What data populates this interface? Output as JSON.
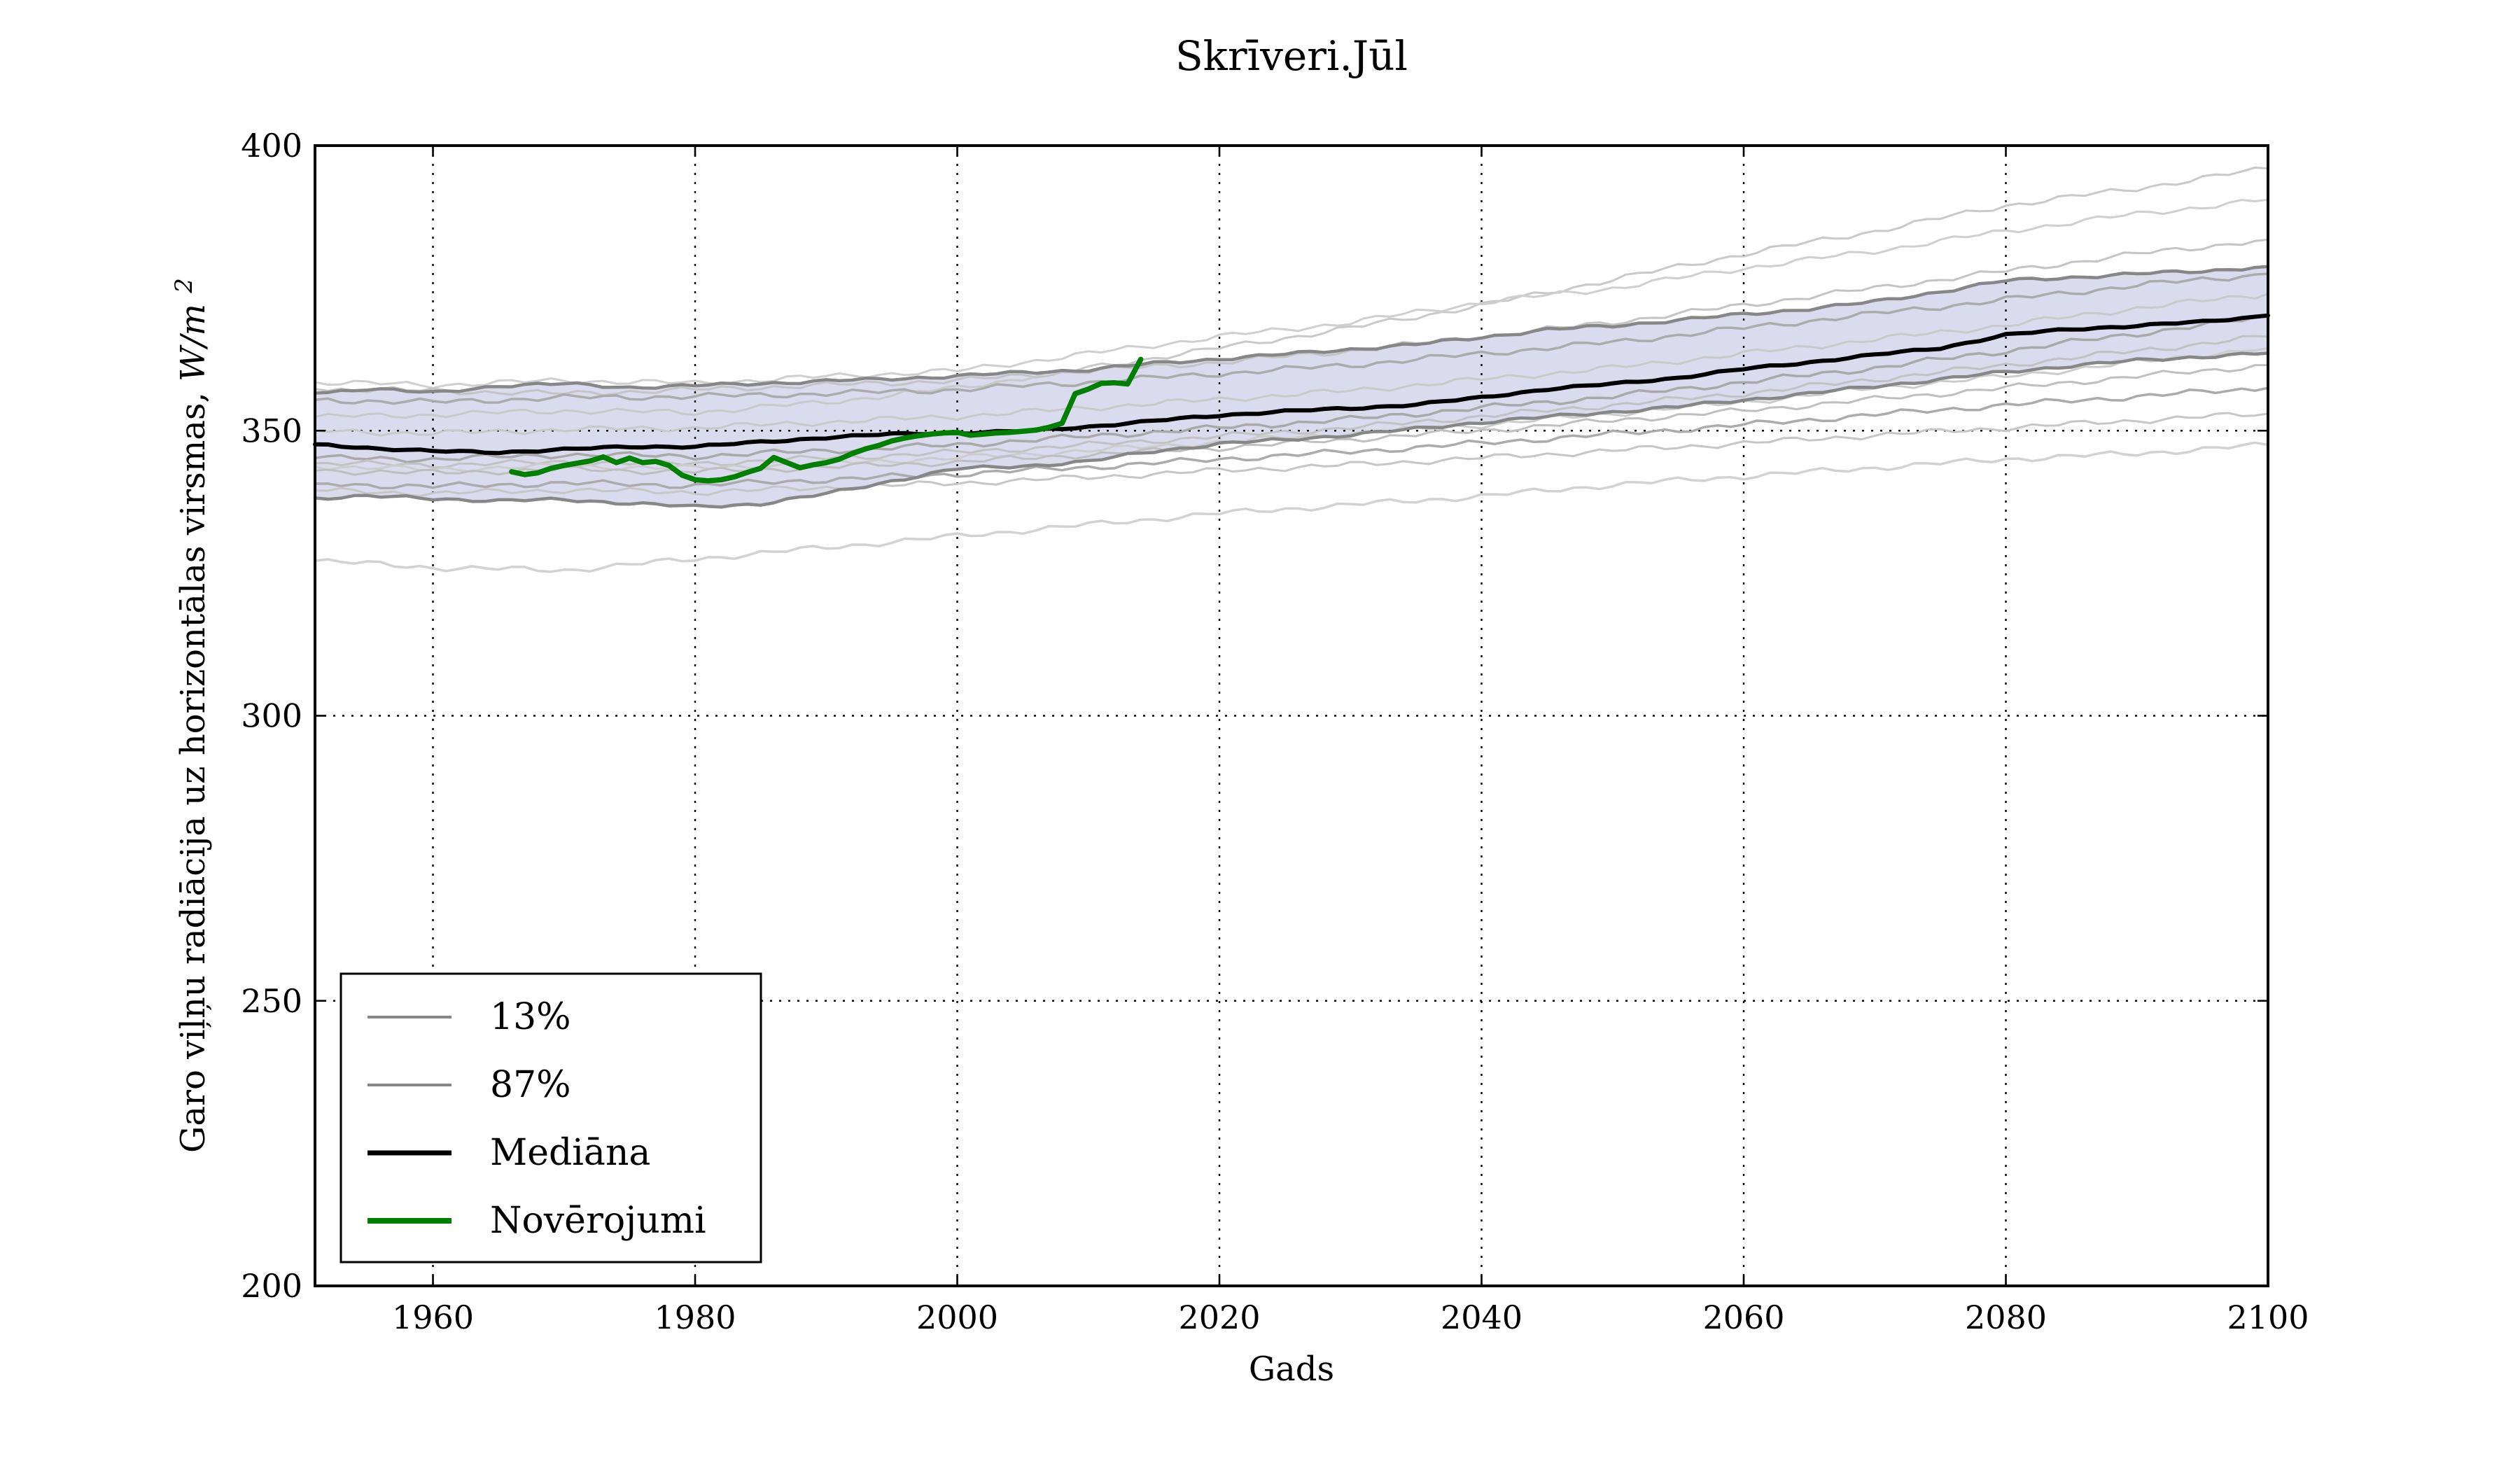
{
  "chart_data": {
    "type": "line",
    "title": "Skrīveri.Jūl",
    "xlabel": "Gads",
    "ylabel": "Garo viļņu radiācija uz horizontālas virsmas, W/m^2",
    "ylabel_parts": {
      "prefix": "Garo viļņu radiācija uz horizontālas virsmas, ",
      "unit": "W/m",
      "sup": "2"
    },
    "xlim": [
      1951,
      2100
    ],
    "ylim": [
      200,
      400
    ],
    "xticks": [
      1960,
      1980,
      2000,
      2020,
      2040,
      2060,
      2080,
      2100
    ],
    "yticks": [
      200,
      250,
      300,
      350,
      400
    ],
    "grid": "dotted-black-both-axes",
    "legend_position": "lower-left",
    "band": {
      "between": [
        "13%",
        "87%"
      ],
      "fill_color": "#8888cc",
      "fill_opacity": 0.3
    },
    "legend": [
      {
        "label": "13%",
        "color": "#878787",
        "sample_width": 4
      },
      {
        "label": "87%",
        "color": "#878787",
        "sample_width": 4
      },
      {
        "label": "Mediāna",
        "color": "#000000",
        "sample_width": 7
      },
      {
        "label": "Novērojumi",
        "color": "#008000",
        "sample_width": 8
      }
    ],
    "series": [
      {
        "name": "ens-01",
        "role": "ensemble",
        "color": "#c9c9c9",
        "width": 3,
        "x": [
          1951,
          1960,
          1970,
          1980,
          1990,
          2000,
          2010,
          2020,
          2030,
          2040,
          2050,
          2060,
          2070,
          2080,
          2090,
          2100
        ],
        "y": [
          352.4,
          352.8,
          353.5,
          353.2,
          355.0,
          357.5,
          361.0,
          364.5,
          368.0,
          372.0,
          376.5,
          381.0,
          385.0,
          389.5,
          392.5,
          396.0
        ]
      },
      {
        "name": "ens-02",
        "role": "ensemble",
        "color": "#cfcfcf",
        "width": 3,
        "x": [
          1951,
          1960,
          1970,
          1980,
          1990,
          2000,
          2010,
          2020,
          2030,
          2040,
          2050,
          2060,
          2070,
          2080,
          2090,
          2100
        ],
        "y": [
          358.5,
          358.0,
          358.8,
          358.3,
          359.5,
          360.5,
          363.5,
          366.5,
          369.0,
          372.5,
          375.0,
          378.5,
          381.5,
          385.0,
          388.0,
          390.5
        ]
      },
      {
        "name": "ens-03",
        "role": "ensemble",
        "color": "#c4c4c4",
        "width": 3,
        "x": [
          1951,
          1960,
          1970,
          1980,
          1990,
          2000,
          2010,
          2020,
          2030,
          2040,
          2050,
          2060,
          2070,
          2080,
          2090,
          2100
        ],
        "y": [
          357.3,
          357.0,
          356.5,
          357.2,
          358.0,
          358.8,
          360.5,
          362.0,
          364.0,
          366.5,
          369.0,
          372.0,
          375.0,
          378.0,
          381.0,
          383.5
        ]
      },
      {
        "name": "ens-04",
        "role": "ensemble",
        "color": "#ababab",
        "width": 3.5,
        "x": [
          1951,
          1960,
          1970,
          1980,
          1990,
          2000,
          2010,
          2020,
          2030,
          2040,
          2050,
          2060,
          2070,
          2080,
          2090,
          2100
        ],
        "y": [
          355.4,
          355.0,
          355.8,
          356.0,
          356.5,
          357.2,
          358.5,
          360.0,
          361.5,
          363.5,
          365.5,
          368.0,
          370.5,
          373.0,
          375.5,
          377.5
        ]
      },
      {
        "name": "ens-05",
        "role": "ensemble",
        "color": "#c9c9c9",
        "width": 3,
        "x": [
          1951,
          1960,
          1970,
          1980,
          1990,
          2000,
          2010,
          2020,
          2030,
          2040,
          2050,
          2060,
          2070,
          2080,
          2090,
          2100
        ],
        "y": [
          350.0,
          349.5,
          350.2,
          350.5,
          351.5,
          352.5,
          354.0,
          355.5,
          357.0,
          359.0,
          361.0,
          363.5,
          366.0,
          368.5,
          371.5,
          374.0
        ]
      },
      {
        "name": "ens-06",
        "role": "ensemble",
        "color": "#a9a9a9",
        "width": 3.5,
        "x": [
          1951,
          1960,
          1970,
          1980,
          1990,
          2000,
          2010,
          2020,
          2030,
          2040,
          2050,
          2060,
          2070,
          2080,
          2090,
          2100
        ],
        "y": [
          345.2,
          345.0,
          345.8,
          345.5,
          346.5,
          347.5,
          349.0,
          350.5,
          352.0,
          354.0,
          356.0,
          358.5,
          361.0,
          364.0,
          367.0,
          370.0
        ]
      },
      {
        "name": "ens-07",
        "role": "ensemble",
        "color": "#c2c2c2",
        "width": 3,
        "x": [
          1951,
          1960,
          1970,
          1980,
          1990,
          2000,
          2010,
          2020,
          2030,
          2040,
          2050,
          2060,
          2070,
          2080,
          2090,
          2100
        ],
        "y": [
          344.3,
          344.0,
          344.5,
          344.2,
          345.2,
          346.2,
          347.5,
          349.0,
          350.5,
          352.5,
          354.5,
          356.5,
          359.0,
          361.5,
          364.0,
          366.5
        ]
      },
      {
        "name": "ens-08",
        "role": "ensemble",
        "color": "#cccccc",
        "width": 3,
        "x": [
          1951,
          1960,
          1970,
          1980,
          1990,
          2000,
          2010,
          2020,
          2030,
          2040,
          2050,
          2060,
          2070,
          2080,
          2090,
          2100
        ],
        "y": [
          343.7,
          343.2,
          343.8,
          343.4,
          344.3,
          345.2,
          346.5,
          348.0,
          349.5,
          351.0,
          353.0,
          355.0,
          357.5,
          359.5,
          362.0,
          364.5
        ]
      },
      {
        "name": "ens-09",
        "role": "ensemble",
        "color": "#bfbfbf",
        "width": 3,
        "x": [
          1951,
          1960,
          1970,
          1980,
          1990,
          2000,
          2010,
          2020,
          2030,
          2040,
          2050,
          2060,
          2070,
          2080,
          2090,
          2100
        ],
        "y": [
          343.0,
          342.6,
          343.2,
          342.8,
          343.6,
          344.5,
          345.8,
          347.0,
          348.5,
          350.0,
          351.8,
          353.5,
          355.5,
          357.5,
          359.5,
          361.5
        ]
      },
      {
        "name": "ens-10",
        "role": "ensemble",
        "color": "#ababab",
        "width": 3.5,
        "x": [
          1951,
          1960,
          1970,
          1980,
          1990,
          2000,
          2010,
          2020,
          2030,
          2040,
          2050,
          2060,
          2070,
          2080,
          2090,
          2100
        ],
        "y": [
          340.7,
          340.2,
          340.8,
          340.4,
          341.4,
          342.4,
          343.6,
          345.0,
          346.3,
          347.8,
          349.4,
          351.0,
          352.8,
          354.5,
          356.0,
          357.5
        ]
      },
      {
        "name": "ens-11",
        "role": "ensemble",
        "color": "#c6c6c6",
        "width": 3,
        "x": [
          1951,
          1960,
          1970,
          1980,
          1990,
          2000,
          2010,
          2020,
          2030,
          2040,
          2050,
          2060,
          2070,
          2080,
          2090,
          2100
        ],
        "y": [
          339.5,
          339.0,
          339.6,
          339.2,
          340.0,
          340.8,
          341.8,
          343.0,
          344.0,
          345.2,
          346.5,
          347.8,
          349.2,
          350.5,
          351.8,
          353.0
        ]
      },
      {
        "name": "ens-12",
        "role": "ensemble",
        "color": "#d2d2d2",
        "width": 3.5,
        "x": [
          1951,
          1960,
          1970,
          1980,
          1990,
          2000,
          2010,
          2020,
          2030,
          2040,
          2050,
          2060,
          2070,
          2080,
          2090,
          2100
        ],
        "y": [
          327.2,
          326.0,
          325.5,
          327.5,
          329.5,
          331.5,
          333.5,
          335.5,
          337.0,
          338.5,
          340.5,
          342.0,
          343.5,
          345.0,
          346.0,
          347.5
        ]
      },
      {
        "name": "13%",
        "role": "percentile",
        "color": "#878787",
        "width": 4.5,
        "x": [
          1951,
          1955,
          1960,
          1965,
          1970,
          1975,
          1980,
          1985,
          1990,
          1995,
          2000,
          2005,
          2010,
          2015,
          2020,
          2025,
          2030,
          2035,
          2040,
          2045,
          2050,
          2055,
          2060,
          2065,
          2070,
          2075,
          2080,
          2085,
          2090,
          2095,
          2100
        ],
        "y": [
          338.2,
          338.5,
          338.1,
          337.7,
          337.9,
          337.3,
          336.6,
          337.2,
          338.9,
          341.2,
          343.3,
          343.8,
          344.6,
          346.4,
          347.7,
          348.4,
          349.3,
          350.3,
          351.5,
          352.4,
          353.3,
          354.2,
          355.4,
          356.5,
          357.8,
          359.0,
          360.3,
          361.4,
          362.3,
          363.0,
          363.6
        ]
      },
      {
        "name": "87%",
        "role": "percentile",
        "color": "#878787",
        "width": 4.5,
        "x": [
          1951,
          1955,
          1960,
          1965,
          1970,
          1975,
          1980,
          1985,
          1990,
          1995,
          2000,
          2005,
          2010,
          2015,
          2020,
          2025,
          2030,
          2035,
          2040,
          2045,
          2050,
          2055,
          2060,
          2065,
          2070,
          2075,
          2080,
          2085,
          2090,
          2095,
          2100
        ],
        "y": [
          356.6,
          357.4,
          356.6,
          357.9,
          358.2,
          357.6,
          357.9,
          358.3,
          358.7,
          359.1,
          359.6,
          360.2,
          360.7,
          361.8,
          362.6,
          363.4,
          364.3,
          365.1,
          366.4,
          367.7,
          368.4,
          369.4,
          370.4,
          371.4,
          372.6,
          374.4,
          376.3,
          376.9,
          377.5,
          378.0,
          378.8
        ]
      },
      {
        "name": "Mediāna",
        "role": "median",
        "color": "#000000",
        "width": 6,
        "x": [
          1951,
          1955,
          1960,
          1965,
          1970,
          1975,
          1980,
          1985,
          1990,
          1995,
          2000,
          2005,
          2010,
          2015,
          2020,
          2025,
          2030,
          2035,
          2040,
          2045,
          2050,
          2055,
          2060,
          2065,
          2070,
          2075,
          2080,
          2085,
          2090,
          2095,
          2100
        ],
        "y": [
          347.6,
          347.0,
          346.4,
          346.2,
          346.7,
          347.2,
          347.2,
          348.0,
          348.8,
          349.4,
          349.6,
          349.9,
          350.7,
          351.7,
          352.7,
          353.4,
          353.9,
          354.6,
          355.8,
          357.3,
          358.2,
          359.3,
          360.8,
          362.0,
          363.3,
          364.5,
          366.8,
          367.8,
          368.4,
          369.1,
          370.2
        ]
      },
      {
        "name": "Novērojumi",
        "role": "obs",
        "color": "#008000",
        "width": 7.5,
        "x": [
          1966,
          1967,
          1968,
          1969,
          1970,
          1971,
          1972,
          1973,
          1974,
          1975,
          1976,
          1977,
          1978,
          1979,
          1980,
          1981,
          1982,
          1983,
          1984,
          1985,
          1986,
          1987,
          1988,
          1989,
          1990,
          1991,
          1992,
          1993,
          1994,
          1995,
          1996,
          1997,
          1998,
          1999,
          2000,
          2001,
          2002,
          2003,
          2004,
          2005,
          2006,
          2007,
          2008,
          2009,
          2010,
          2011,
          2012,
          2013,
          2014
        ],
        "y": [
          342.8,
          342.3,
          342.6,
          343.4,
          343.9,
          344.3,
          344.7,
          345.4,
          344.4,
          345.2,
          344.4,
          344.6,
          343.9,
          342.2,
          341.4,
          341.2,
          341.4,
          341.9,
          342.7,
          343.4,
          345.3,
          344.4,
          343.5,
          344.0,
          344.4,
          345.0,
          346.0,
          346.8,
          347.4,
          348.2,
          348.7,
          349.1,
          349.4,
          349.6,
          349.7,
          349.2,
          349.4,
          349.6,
          349.7,
          349.9,
          350.1,
          350.6,
          351.3,
          356.5,
          357.3,
          358.3,
          358.4,
          358.2,
          362.5
        ]
      }
    ]
  }
}
